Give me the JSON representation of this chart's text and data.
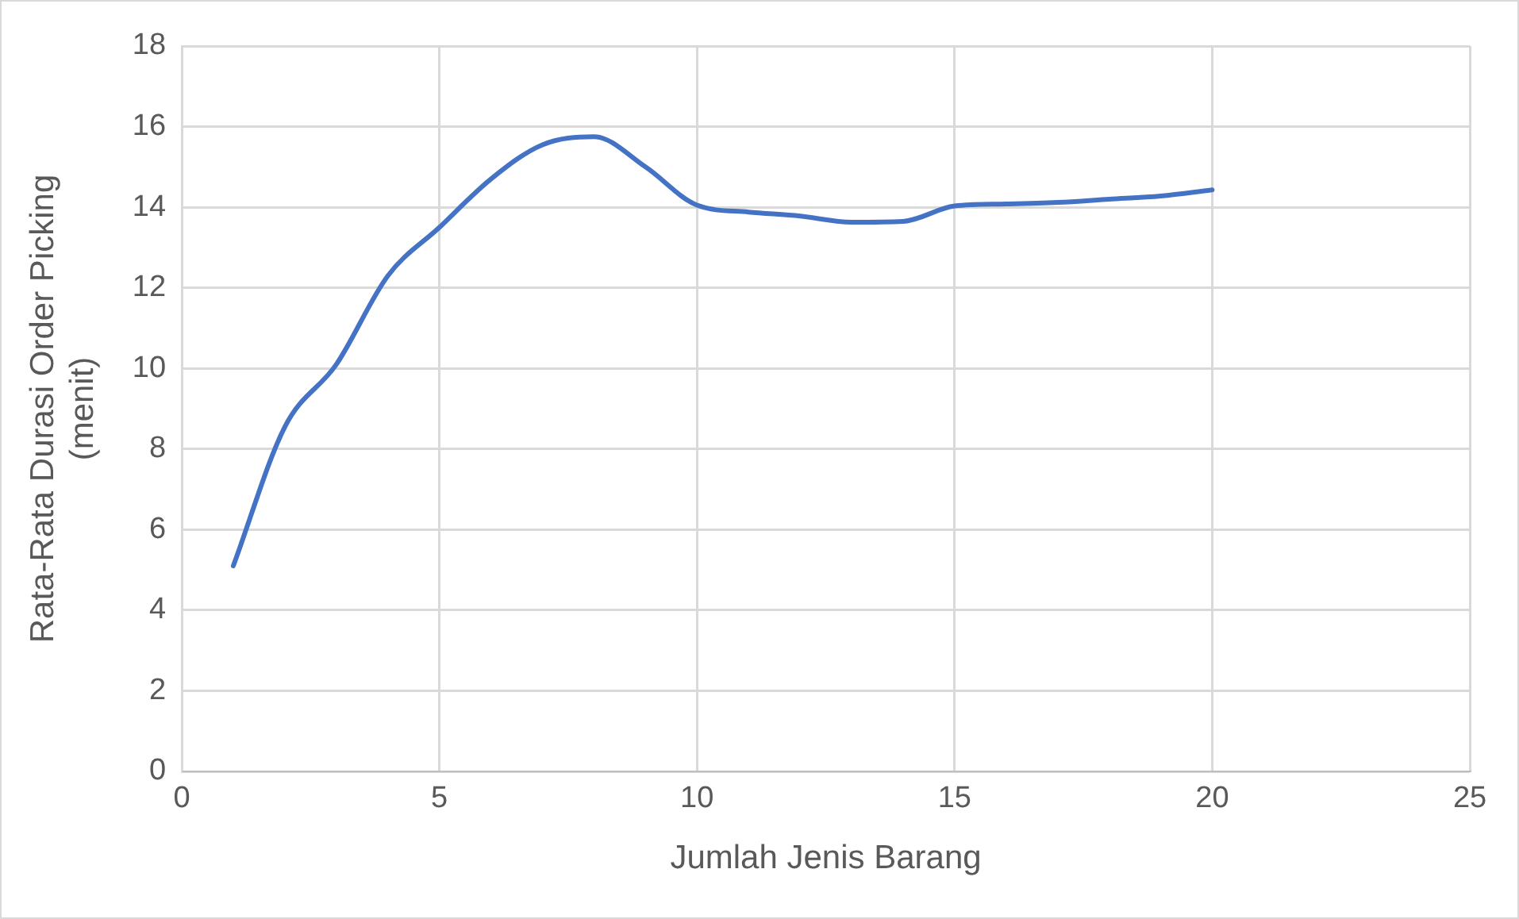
{
  "chart_data": {
    "type": "line",
    "xlabel": "Jumlah Jenis Barang",
    "ylabel": "Rata-Rata Durasi Order Picking (menit)",
    "x": [
      1,
      2,
      3,
      4,
      5,
      6,
      7,
      8,
      9,
      10,
      11,
      12,
      13,
      14,
      15,
      16,
      17,
      18,
      19,
      20
    ],
    "series": [
      {
        "color": "#4472c4",
        "values": [
          5.1,
          8.55,
          10.1,
          12.3,
          13.5,
          14.7,
          15.55,
          15.75,
          15.0,
          14.05,
          13.88,
          13.78,
          13.63,
          13.65,
          14.03,
          14.08,
          14.12,
          14.2,
          14.28,
          14.43
        ]
      }
    ],
    "xlim": [
      0,
      25
    ],
    "xticks": [
      0,
      5,
      10,
      15,
      20,
      25
    ],
    "ylim": [
      0,
      18
    ],
    "yticks": [
      0,
      2,
      4,
      6,
      8,
      10,
      12,
      14,
      16,
      18
    ],
    "grid": true,
    "legend": false,
    "marker": "none",
    "line_style": "solid"
  }
}
